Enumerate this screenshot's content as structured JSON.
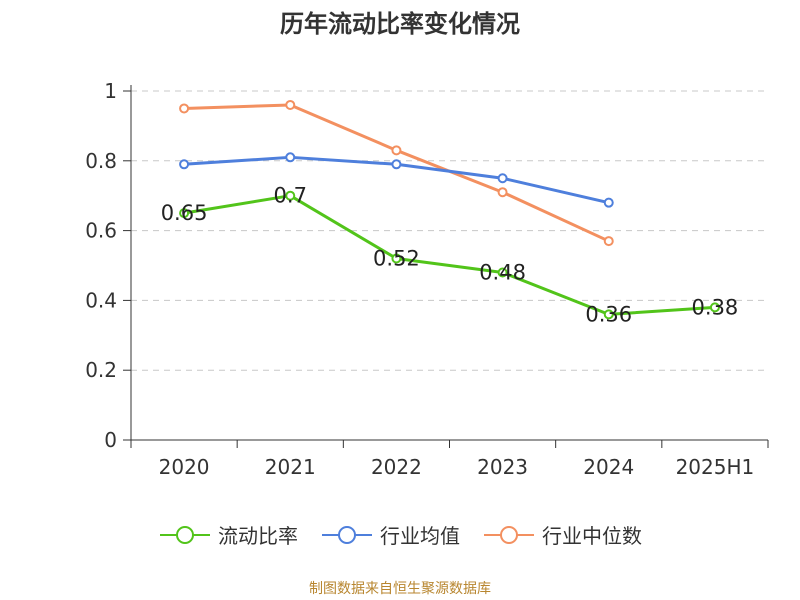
{
  "chart_data": {
    "type": "line",
    "title": "历年流动比率变化情况",
    "categories": [
      "2020",
      "2021",
      "2022",
      "2023",
      "2024",
      "2025H1"
    ],
    "ylim": [
      0,
      1
    ],
    "yticks": [
      "0",
      "0.2",
      "0.4",
      "0.6",
      "0.8",
      "1"
    ],
    "grid": true,
    "legend_position": "bottom",
    "series": [
      {
        "name": "流动比率",
        "color": "#52c41a",
        "values": [
          0.65,
          0.7,
          0.52,
          0.48,
          0.36,
          0.38
        ],
        "labels": [
          "0.65",
          "0.7",
          "0.52",
          "0.48",
          "0.36",
          "0.38"
        ]
      },
      {
        "name": "行业均值",
        "color": "#4e7fdc",
        "values": [
          0.79,
          0.81,
          0.79,
          0.75,
          0.68,
          null
        ]
      },
      {
        "name": "行业中位数",
        "color": "#f39060",
        "values": [
          0.95,
          0.96,
          0.83,
          0.71,
          0.57,
          null
        ]
      }
    ]
  },
  "footer": {
    "source": "制图数据来自恒生聚源数据库"
  }
}
